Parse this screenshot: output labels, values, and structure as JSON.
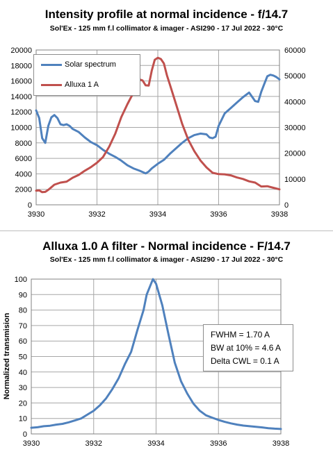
{
  "charts": [
    {
      "title": "Intensity profile at normal incidence - f/14.7",
      "subtitle": "Sol'Ex - 125 mm f.l collimator & imager - ASI290 - 17 Jul 2022 - 30°C",
      "legend": [
        "Solar spectrum",
        "Alluxa 1 A"
      ]
    },
    {
      "title": "Alluxa 1.0 A filter - Normal incidence - F/14.7",
      "subtitle": "Sol'Ex - 125 mm f.l collimator & imager - ASI290 - 17 Jul 2022 - 30°C",
      "ylabel": "Normalized transmision",
      "note": [
        "FWHM = 1.70  A",
        "BW at 10% = 4.6 A",
        "Delta CWL = 0.1 A"
      ]
    }
  ],
  "chart_data": [
    {
      "type": "line",
      "title": "Intensity profile at normal incidence - f/14.7",
      "xlim": [
        3930,
        3938
      ],
      "xticks": [
        3930,
        3932,
        3934,
        3936,
        3938
      ],
      "ylim": [
        0,
        20000
      ],
      "yticks": [
        0,
        2000,
        4000,
        6000,
        8000,
        10000,
        12000,
        14000,
        16000,
        18000,
        20000
      ],
      "y2lim": [
        0,
        60000
      ],
      "y2ticks": [
        0,
        10000,
        20000,
        30000,
        40000,
        50000,
        60000
      ],
      "grid": true,
      "legend_position": "top-left",
      "series": [
        {
          "name": "Solar spectrum",
          "axis": "left",
          "color": "#4f81bd",
          "x": [
            3930.0,
            3930.1,
            3930.2,
            3930.3,
            3930.4,
            3930.5,
            3930.6,
            3930.7,
            3930.8,
            3930.9,
            3931.0,
            3931.1,
            3931.2,
            3931.4,
            3931.6,
            3931.8,
            3932.0,
            3932.2,
            3932.4,
            3932.6,
            3932.8,
            3933.0,
            3933.2,
            3933.4,
            3933.6,
            3933.7,
            3933.8,
            3934.0,
            3934.2,
            3934.4,
            3934.6,
            3934.8,
            3935.0,
            3935.2,
            3935.4,
            3935.6,
            3935.7,
            3935.8,
            3935.9,
            3936.0,
            3936.2,
            3936.4,
            3936.6,
            3936.8,
            3937.0,
            3937.2,
            3937.3,
            3937.4,
            3937.5,
            3937.6,
            3937.7,
            3937.8,
            3937.9,
            3938.0
          ],
          "y": [
            12200,
            11200,
            8600,
            8000,
            10200,
            11300,
            11600,
            11200,
            10400,
            10300,
            10400,
            10200,
            9800,
            9400,
            8700,
            8100,
            7700,
            7100,
            6600,
            6200,
            5700,
            5100,
            4700,
            4400,
            4050,
            4300,
            4700,
            5300,
            5800,
            6600,
            7300,
            8000,
            8600,
            9000,
            9200,
            9100,
            8700,
            8600,
            8800,
            10200,
            11800,
            12500,
            13200,
            13900,
            14500,
            13400,
            13300,
            14600,
            15600,
            16600,
            16800,
            16700,
            16500,
            16200
          ]
        },
        {
          "name": "Alluxa 1 A",
          "axis": "right",
          "color": "#c0504d",
          "x": [
            3930.0,
            3930.1,
            3930.2,
            3930.3,
            3930.4,
            3930.5,
            3930.6,
            3930.8,
            3931.0,
            3931.2,
            3931.4,
            3931.6,
            3931.8,
            3932.0,
            3932.2,
            3932.4,
            3932.6,
            3932.8,
            3933.0,
            3933.2,
            3933.4,
            3933.5,
            3933.6,
            3933.7,
            3933.8,
            3933.9,
            3934.0,
            3934.1,
            3934.2,
            3934.3,
            3934.4,
            3934.6,
            3934.8,
            3935.0,
            3935.2,
            3935.4,
            3935.6,
            3935.8,
            3936.0,
            3936.2,
            3936.4,
            3936.6,
            3936.8,
            3937.0,
            3937.2,
            3937.4,
            3937.6,
            3937.8,
            3938.0
          ],
          "y": [
            5500,
            5600,
            4900,
            5000,
            5800,
            6800,
            7800,
            8600,
            9000,
            10500,
            11600,
            13200,
            14600,
            16300,
            18500,
            22500,
            27500,
            34000,
            39000,
            43500,
            48600,
            48200,
            46300,
            46200,
            52000,
            56200,
            57000,
            56500,
            54800,
            50200,
            46500,
            39000,
            31400,
            25200,
            20800,
            17200,
            14500,
            12400,
            11900,
            11800,
            11400,
            10600,
            10000,
            9100,
            8600,
            7100,
            7200,
            6600,
            6000
          ]
        }
      ]
    },
    {
      "type": "line",
      "title": "Alluxa 1.0 A filter - Normal incidence - F/14.7",
      "ylabel": "Normalized transmision",
      "xlim": [
        3930,
        3938
      ],
      "xticks": [
        3930,
        3932,
        3934,
        3936,
        3938
      ],
      "ylim": [
        0,
        100
      ],
      "yticks": [
        0,
        10,
        20,
        30,
        40,
        50,
        60,
        70,
        80,
        90,
        100
      ],
      "grid": true,
      "series": [
        {
          "color": "#4f81bd",
          "x": [
            3930.0,
            3930.2,
            3930.4,
            3930.6,
            3930.8,
            3931.0,
            3931.2,
            3931.4,
            3931.6,
            3931.8,
            3932.0,
            3932.2,
            3932.4,
            3932.6,
            3932.8,
            3933.0,
            3933.2,
            3933.4,
            3933.6,
            3933.7,
            3933.8,
            3933.9,
            3934.0,
            3934.2,
            3934.4,
            3934.6,
            3934.8,
            3935.0,
            3935.2,
            3935.4,
            3935.6,
            3935.8,
            3936.0,
            3936.2,
            3936.4,
            3936.6,
            3936.8,
            3937.0,
            3937.2,
            3937.4,
            3937.6,
            3937.8,
            3938.0
          ],
          "y": [
            4,
            4.3,
            5,
            5.3,
            6,
            6.5,
            7.5,
            8.7,
            10,
            12.5,
            15,
            18.5,
            23,
            29,
            36,
            45,
            53,
            67,
            80,
            90,
            95,
            100,
            97,
            83,
            64,
            46,
            34,
            26,
            19.5,
            15,
            12,
            10.5,
            9,
            7.8,
            6.8,
            6,
            5.4,
            5,
            4.6,
            4.2,
            3.7,
            3.4,
            3.2
          ]
        }
      ]
    }
  ]
}
